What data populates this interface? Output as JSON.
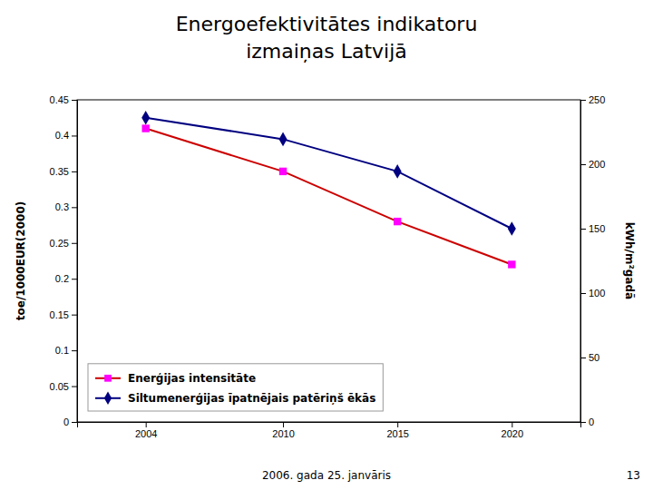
{
  "chart_data": {
    "type": "line",
    "title": "Energoefektivitātes indikatoru",
    "subtitle": "izmaiņas Latvijā",
    "x": [
      2004,
      2010,
      2015,
      2020
    ],
    "series": [
      {
        "name": "Enerģijas intensitāte",
        "color": "#CC0000",
        "colors": [
          "#FF00FF",
          "#FF00FF",
          "#FF00FF",
          "#FF00FF"
        ],
        "marker": "square",
        "line_style": "solid",
        "values": [
          0.41,
          0.35,
          0.28,
          0.22
        ]
      },
      {
        "name": "Siltumenerģijas īpatnējais patēriņš ēkās",
        "color": "#000080",
        "colors": [
          "#000080",
          "#000080",
          "#000080",
          "#000080"
        ],
        "marker": "diamond",
        "line_style": "solid",
        "values": [
          0.425,
          0.395,
          0.35,
          0.27
        ]
      }
    ],
    "ylabel": "toe/1000EUR(2000)",
    "y2label": "kWh/m²gadā",
    "xlim": [
      2001,
      2023
    ],
    "xticks": [
      2004,
      2010,
      2015,
      2020
    ],
    "ylim": [
      0,
      0.45
    ],
    "yticks": [
      0,
      0.05,
      0.1,
      0.15,
      0.2,
      0.25,
      0.3,
      0.35,
      0.4,
      0.45
    ],
    "y2lim": [
      0,
      250
    ],
    "y2ticks": [
      0,
      50,
      100,
      150,
      200,
      250
    ],
    "grid": false,
    "legend": "lower left",
    "annotations": [
      "2006. gada 25. janvāris",
      "13"
    ]
  }
}
